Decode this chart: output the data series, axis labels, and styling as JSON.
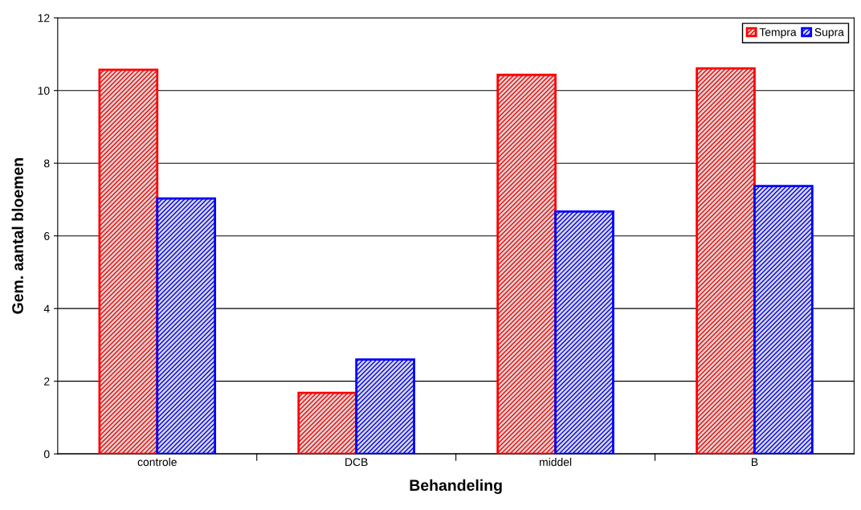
{
  "chart_data": {
    "type": "bar",
    "xlabel": "Behandeling",
    "ylabel": "Gem. aantal bloemen",
    "categories": [
      "controle",
      "DCB",
      "middel",
      "B"
    ],
    "series": [
      {
        "name": "Tempra",
        "color": "#ff0000",
        "values": [
          10.57,
          1.68,
          10.43,
          10.61
        ]
      },
      {
        "name": "Supra",
        "color": "#0000ff",
        "values": [
          7.03,
          2.6,
          6.67,
          7.37
        ]
      }
    ],
    "ylim": [
      0,
      12
    ],
    "yticks": [
      0,
      2,
      4,
      6,
      8,
      10,
      12
    ],
    "grid": "y",
    "legend": "top right"
  }
}
